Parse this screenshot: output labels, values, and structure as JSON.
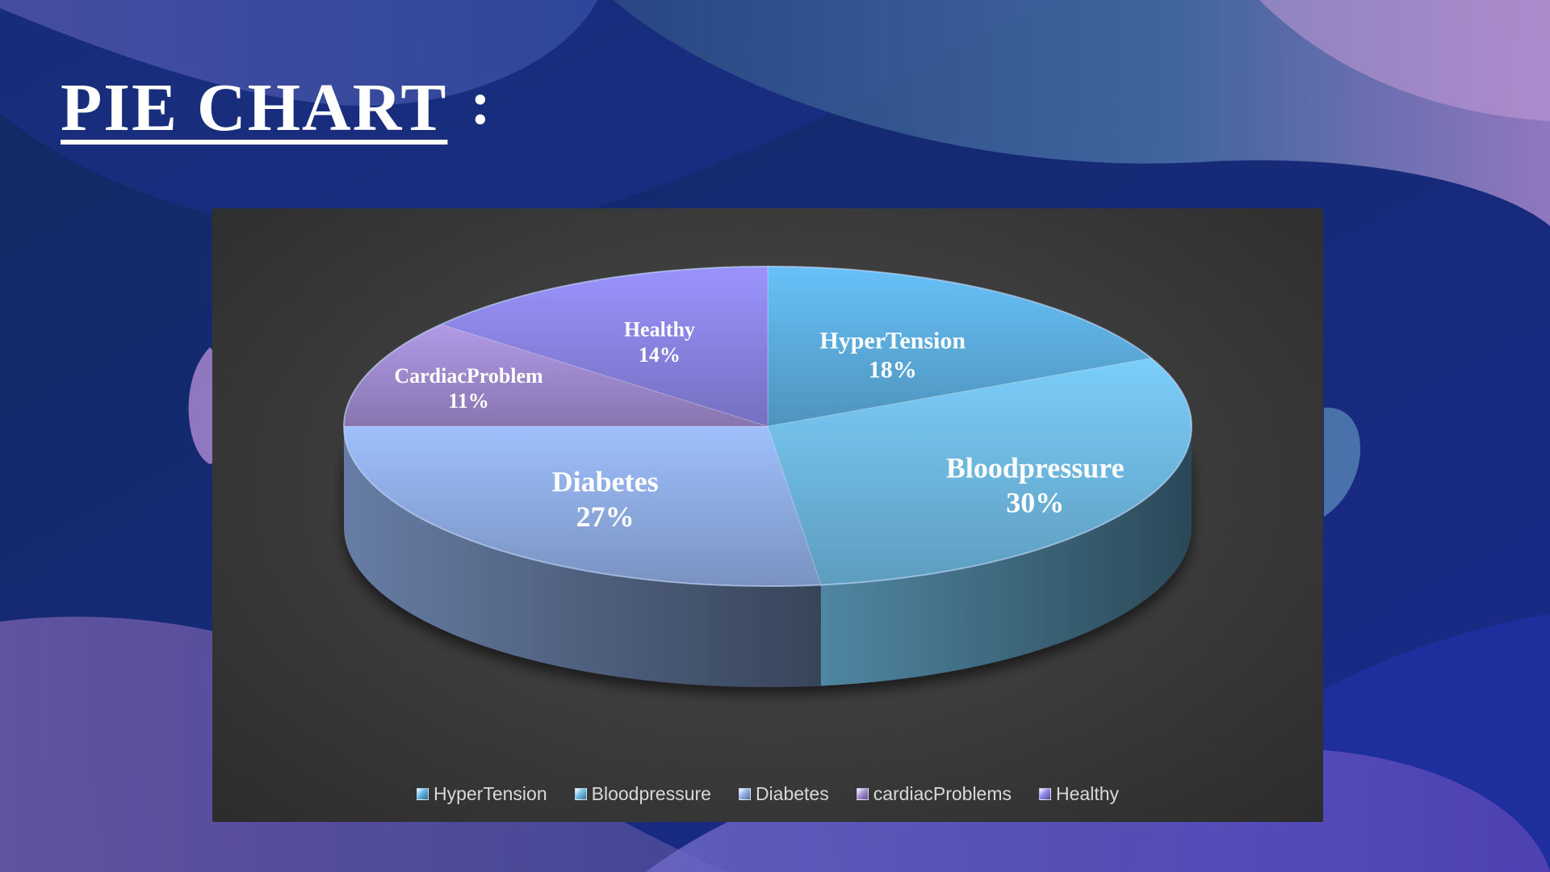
{
  "slide": {
    "title": "PIE CHART",
    "colon": ":"
  },
  "chart_data": {
    "type": "pie",
    "style": "3d",
    "categories": [
      "HyperTension",
      "Bloodpressure",
      "Diabetes",
      "cardiacProblems",
      "Healthy"
    ],
    "slice_labels": [
      "HyperTension",
      "Bloodpressure",
      "Diabetes",
      "CardiacProblem",
      "Healthy"
    ],
    "values": [
      18,
      30,
      27,
      11,
      14
    ],
    "value_labels": [
      "18%",
      "30%",
      "27%",
      "11%",
      "14%"
    ],
    "colors": [
      "#5fb3e6",
      "#72bfe8",
      "#93b2ea",
      "#a58fd6",
      "#8f88ea"
    ],
    "legend": {
      "position": "bottom",
      "entries": [
        "HyperTension",
        "Bloodpressure",
        "Diabetes",
        "cardiacProblems",
        "Healthy"
      ]
    }
  }
}
